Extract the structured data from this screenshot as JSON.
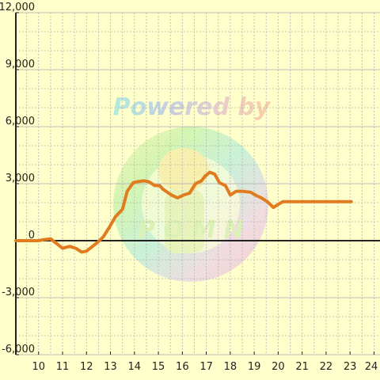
{
  "chart_data": {
    "type": "line",
    "title": "",
    "xlabel": "",
    "ylabel": "",
    "xlim": [
      9.05,
      24.25
    ],
    "ylim": [
      -6000,
      12000
    ],
    "x_ticks": [
      10,
      11,
      12,
      13,
      14,
      15,
      16,
      17,
      18,
      19,
      20,
      21,
      22,
      23,
      24
    ],
    "x_tick_labels": [
      "10",
      "11",
      "12",
      "13",
      "14",
      "15",
      "16",
      "17",
      "18",
      "19",
      "20",
      "21",
      "22",
      "23",
      "24"
    ],
    "y_ticks": [
      -6000,
      -3000,
      0,
      3000,
      6000,
      9000,
      12000
    ],
    "y_tick_labels": [
      "-6,000",
      "-3,000",
      "0",
      "3,000",
      "6,000",
      "9,000",
      "12,000"
    ],
    "grid": true,
    "colors": {
      "background": "#ffffcc",
      "line": "#e07b20",
      "grid": "#b5b5b5",
      "axis": "#222222"
    },
    "series": [
      {
        "x": [
          9.05,
          10.0,
          10.2,
          10.5,
          10.65,
          11.0,
          11.3,
          11.55,
          11.8,
          12.0,
          12.2,
          12.45,
          12.7,
          12.95,
          13.2,
          13.5,
          13.7,
          13.95,
          14.1,
          14.4,
          14.6,
          14.85,
          15.05,
          15.2,
          15.55,
          15.8,
          16.05,
          16.3,
          16.55,
          16.8,
          16.95,
          17.15,
          17.35,
          17.55,
          17.8,
          18.0,
          18.25,
          18.5,
          18.85,
          19.05,
          19.3,
          19.55,
          19.8,
          20.05,
          20.2,
          20.6,
          21.0,
          21.5,
          22.0,
          22.5,
          23.05
        ],
        "y": [
          0,
          0,
          50,
          100,
          -50,
          -400,
          -300,
          -400,
          -600,
          -550,
          -350,
          -100,
          200,
          700,
          1250,
          1650,
          2600,
          3050,
          3100,
          3150,
          3100,
          2900,
          2900,
          2700,
          2400,
          2250,
          2400,
          2500,
          3000,
          3150,
          3400,
          3600,
          3500,
          3050,
          2900,
          2400,
          2600,
          2600,
          2550,
          2400,
          2250,
          2050,
          1750,
          1950,
          2050,
          2050,
          2050,
          2050,
          2050,
          2050,
          2050
        ]
      }
    ]
  },
  "watermark": {
    "text": "Powered by",
    "logo_text": "P O M N"
  }
}
